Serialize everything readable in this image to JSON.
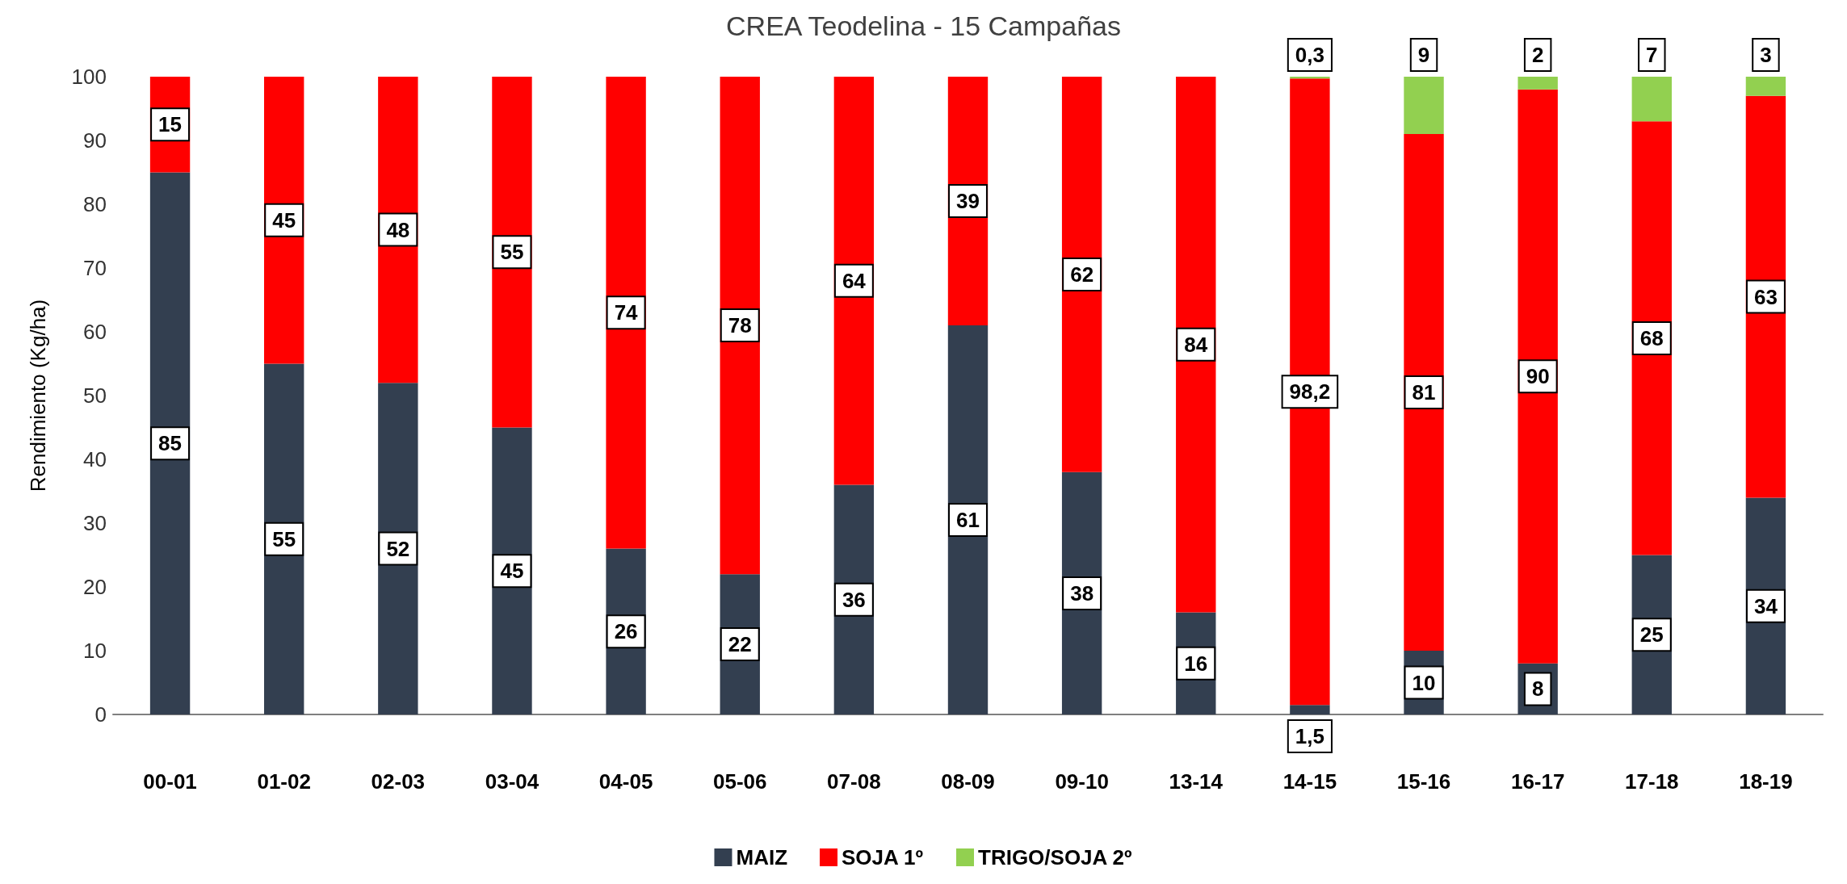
{
  "chart_data": {
    "type": "bar",
    "title": "CREA Teodelina - 15 Campañas",
    "ylabel": "Rendimiento (Kg/ha)",
    "categories": [
      "00-01",
      "01-02",
      "02-03",
      "03-04",
      "04-05",
      "05-06",
      "07-08",
      "08-09",
      "09-10",
      "13-14",
      "14-15",
      "15-16",
      "16-17",
      "17-18",
      "18-19"
    ],
    "stacked": true,
    "ylim": [
      0,
      100
    ],
    "yticks": [
      0,
      10,
      20,
      30,
      40,
      50,
      60,
      70,
      80,
      90,
      100
    ],
    "grid": false,
    "legend": "bottom",
    "series": [
      {
        "name": "MAIZ",
        "color": "#333f50",
        "values": [
          85,
          55,
          52,
          45,
          26,
          22,
          36,
          61,
          38,
          16,
          1.5,
          10,
          8,
          25,
          34
        ],
        "value_labels": [
          "85",
          "55",
          "52",
          "45",
          "26",
          "22",
          "36",
          "61",
          "38",
          "16",
          "1,5",
          "10",
          "8",
          "25",
          "34"
        ]
      },
      {
        "name": "SOJA 1º",
        "color": "#ff0000",
        "values": [
          15,
          45,
          48,
          55,
          74,
          78,
          64,
          39,
          62,
          84,
          98.2,
          81,
          90,
          68,
          63
        ],
        "value_labels": [
          "15",
          "45",
          "48",
          "55",
          "74",
          "78",
          "64",
          "39",
          "62",
          "84",
          "98,2",
          "81",
          "90",
          "68",
          "63"
        ]
      },
      {
        "name": "TRIGO/SOJA 2º",
        "color": "#92d050",
        "values": [
          null,
          null,
          null,
          null,
          null,
          null,
          null,
          null,
          null,
          null,
          0.3,
          9,
          2,
          7,
          3
        ],
        "value_labels": [
          null,
          null,
          null,
          null,
          null,
          null,
          null,
          null,
          null,
          null,
          "0,3",
          "9",
          "2",
          "7",
          "3"
        ]
      }
    ]
  }
}
